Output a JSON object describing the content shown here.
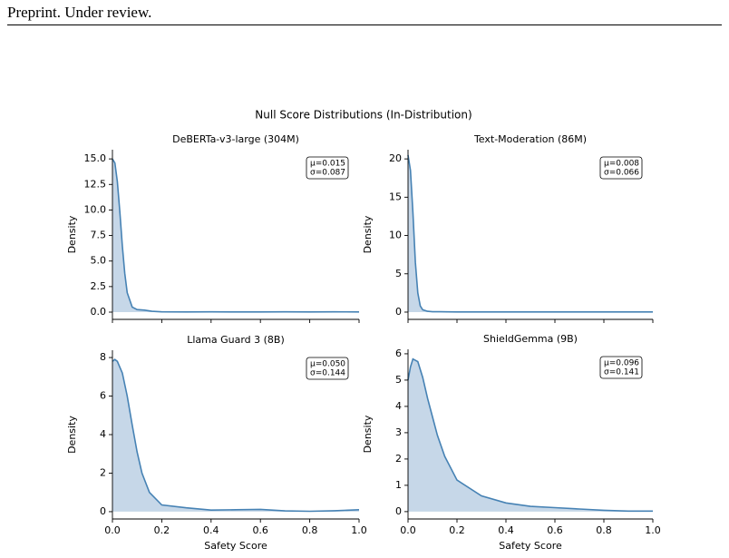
{
  "header": {
    "text": "Preprint. Under review."
  },
  "figure_title": "Null Score Distributions (In-Distribution)",
  "chart_data": [
    {
      "type": "area",
      "title": "DeBERTa-v3-large (304M)",
      "ylabel": "Density",
      "annotation": [
        "μ=0.015",
        "σ=0.087"
      ],
      "x": [
        0,
        0.01,
        0.02,
        0.03,
        0.04,
        0.05,
        0.06,
        0.08,
        0.1,
        0.13,
        0.16,
        0.2,
        0.3,
        0.4,
        0.5,
        0.6,
        0.7,
        0.8,
        0.9,
        1.0
      ],
      "values": [
        15.0,
        14.6,
        12.8,
        9.8,
        6.5,
        3.8,
        1.9,
        0.5,
        0.25,
        0.2,
        0.08,
        0.03,
        0.02,
        0.03,
        0.02,
        0.02,
        0.03,
        0.02,
        0.03,
        0.02
      ],
      "color": "#4682b4",
      "fill": "#c6d7e8",
      "xlim": [
        0,
        1
      ],
      "xticks": [
        0,
        0.2,
        0.4,
        0.6,
        0.8,
        1
      ],
      "ylim": [
        -0.71,
        15.9
      ],
      "yticks": [
        {
          "value": 0,
          "label": "0.0"
        },
        2.5,
        {
          "value": 5,
          "label": "5.0"
        },
        7.5,
        {
          "value": 10,
          "label": "10.0"
        },
        12.5,
        {
          "value": 15,
          "label": "15.0"
        }
      ]
    },
    {
      "type": "area",
      "title": "Text-Moderation (86M)",
      "ylabel": "Density",
      "annotation": [
        "μ=0.008",
        "σ=0.066"
      ],
      "x": [
        0,
        0.01,
        0.02,
        0.03,
        0.04,
        0.05,
        0.06,
        0.08,
        0.1,
        0.13,
        0.16,
        0.2,
        0.3,
        0.4,
        0.5,
        0.6,
        0.7,
        0.8,
        0.9,
        1.0
      ],
      "values": [
        20.5,
        18.5,
        13,
        6.5,
        2.5,
        0.8,
        0.3,
        0.1,
        0.05,
        0.05,
        0.03,
        0.02,
        0.02,
        0.02,
        0.02,
        0.02,
        0.02,
        0.02,
        0.02,
        0.02
      ],
      "color": "#4682b4",
      "fill": "#c6d7e8",
      "xlim": [
        0,
        1
      ],
      "xticks": [
        0,
        0.2,
        0.4,
        0.6,
        0.8,
        1
      ],
      "ylim": [
        -0.95,
        21.2
      ],
      "yticks": [
        0,
        5,
        10,
        15,
        20
      ]
    },
    {
      "type": "area",
      "title": "Llama Guard 3 (8B)",
      "ylabel": "Density",
      "xlabel": "Safety Score",
      "annotation": [
        "μ=0.050",
        "σ=0.144"
      ],
      "x": [
        0,
        0.01,
        0.02,
        0.04,
        0.06,
        0.08,
        0.1,
        0.12,
        0.15,
        0.2,
        0.3,
        0.4,
        0.5,
        0.6,
        0.7,
        0.8,
        0.9,
        1.0
      ],
      "values": [
        7.8,
        7.9,
        7.8,
        7.2,
        6.0,
        4.5,
        3.1,
        2.0,
        1.0,
        0.35,
        0.2,
        0.08,
        0.1,
        0.12,
        0.04,
        0.02,
        0.05,
        0.1
      ],
      "color": "#4682b4",
      "fill": "#c6d7e8",
      "xlim": [
        0,
        1
      ],
      "xticks": [
        {
          "value": 0,
          "label": "0.0"
        },
        0.2,
        0.4,
        0.6,
        0.8,
        {
          "value": 1,
          "label": "1.0"
        }
      ],
      "ylim": [
        -0.38,
        8.38
      ],
      "yticks": [
        0,
        2,
        4,
        6,
        8
      ]
    },
    {
      "type": "area",
      "title": "ShieldGemma (9B)",
      "ylabel": "Density",
      "xlabel": "Safety Score",
      "annotation": [
        "μ=0.096",
        "σ=0.141"
      ],
      "x": [
        0,
        0.01,
        0.02,
        0.04,
        0.06,
        0.08,
        0.1,
        0.12,
        0.15,
        0.2,
        0.3,
        0.4,
        0.5,
        0.6,
        0.7,
        0.8,
        0.9,
        1.0
      ],
      "values": [
        5.0,
        5.5,
        5.8,
        5.7,
        5.1,
        4.3,
        3.6,
        2.9,
        2.1,
        1.2,
        0.6,
        0.33,
        0.2,
        0.15,
        0.1,
        0.05,
        0.02,
        0.02
      ],
      "color": "#4682b4",
      "fill": "#c6d7e8",
      "xlim": [
        0,
        1
      ],
      "xticks": [
        {
          "value": 0,
          "label": "0.0"
        },
        0.2,
        0.4,
        0.6,
        0.8,
        {
          "value": 1,
          "label": "1.0"
        }
      ],
      "ylim": [
        -0.28,
        6.17
      ],
      "yticks": [
        0,
        1,
        2,
        3,
        4,
        5,
        6
      ]
    }
  ]
}
